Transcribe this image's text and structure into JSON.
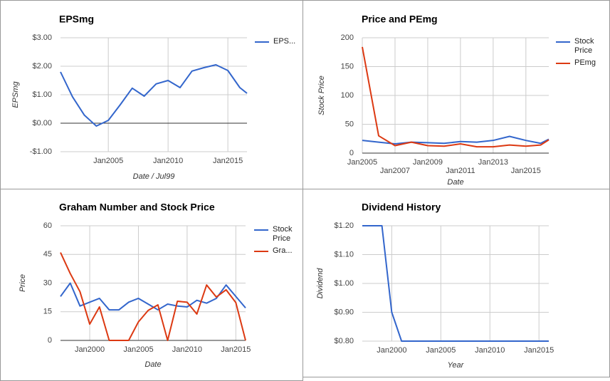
{
  "chart_data": [
    {
      "type": "line",
      "title": "EPSmg",
      "x_label": "Date / Jul99",
      "y_label": "EPSmg",
      "x": [
        2001,
        2002,
        2003,
        2004,
        2005,
        2006,
        2007,
        2008,
        2009,
        2010,
        2011,
        2012,
        2013,
        2014,
        2015,
        2016,
        2016.6
      ],
      "series": [
        {
          "name": "EPS...",
          "color": "#3366cc",
          "values": [
            1.8,
            0.93,
            0.28,
            -0.1,
            0.1,
            0.65,
            1.23,
            0.95,
            1.38,
            1.5,
            1.25,
            1.83,
            1.95,
            2.05,
            1.85,
            1.25,
            1.05
          ]
        }
      ],
      "xlim": [
        2001,
        2016.6
      ],
      "ylim": [
        -1,
        3
      ],
      "xticks": [
        {
          "value": 2005,
          "label": "Jan2005"
        },
        {
          "value": 2010,
          "label": "Jan2010"
        },
        {
          "value": 2015,
          "label": "Jan2015"
        }
      ],
      "yticks": [
        {
          "value": -1,
          "label": "-$1.00"
        },
        {
          "value": 0,
          "label": "$0.00"
        },
        {
          "value": 1,
          "label": "$1.00"
        },
        {
          "value": 2,
          "label": "$2.00"
        },
        {
          "value": 3,
          "label": "$3.00"
        }
      ],
      "grid": true,
      "legend": "right"
    },
    {
      "type": "line",
      "title": "Price and PEmg",
      "x_label": "Date",
      "y_label": "Stock Price",
      "x": [
        2005,
        2006,
        2007,
        2008,
        2009,
        2010,
        2011,
        2012,
        2013,
        2014,
        2015,
        2015.9,
        2016.4
      ],
      "series": [
        {
          "name": "Stock Price",
          "color": "#3366cc",
          "values": [
            22,
            19,
            16,
            19,
            18,
            17,
            20,
            19,
            22,
            29,
            22,
            17,
            24
          ]
        },
        {
          "name": "PEmg",
          "color": "#dc3912",
          "values": [
            184,
            30,
            13,
            19,
            13,
            12,
            16,
            11,
            11,
            14,
            12,
            14,
            23
          ]
        }
      ],
      "xlim": [
        2005,
        2016.4
      ],
      "ylim": [
        0,
        200
      ],
      "xticks": [
        {
          "value": 2005,
          "label": "Jan2005"
        },
        {
          "value": 2007,
          "label": "Jan2007"
        },
        {
          "value": 2009,
          "label": "Jan2009"
        },
        {
          "value": 2011,
          "label": "Jan2011"
        },
        {
          "value": 2013,
          "label": "Jan2013"
        },
        {
          "value": 2015,
          "label": "Jan2015"
        }
      ],
      "yticks": [
        0,
        50,
        100,
        150,
        200
      ],
      "grid": true,
      "legend": "right"
    },
    {
      "type": "line",
      "title": "Graham Number and Stock Price",
      "x_label": "Date",
      "y_label": "Price",
      "x": [
        1997,
        1998,
        1999,
        2000,
        2001,
        2002,
        2003,
        2004,
        2005,
        2006,
        2007,
        2008,
        2009,
        2010,
        2011,
        2012,
        2013,
        2014,
        2015,
        2016
      ],
      "series": [
        {
          "name": "Stock Price",
          "color": "#3366cc",
          "values": [
            23,
            30,
            18,
            20,
            22,
            16,
            16,
            20,
            22,
            19,
            16,
            19,
            18,
            17.5,
            21,
            19.5,
            22,
            29,
            23,
            17
          ]
        },
        {
          "name": "Gra...",
          "color": "#dc3912",
          "values": [
            46,
            35,
            25.5,
            8.5,
            17.5,
            0,
            0,
            0,
            9.7,
            15.7,
            18.6,
            0,
            20.5,
            20,
            13.8,
            29,
            22.7,
            26.5,
            19.8,
            0
          ]
        }
      ],
      "xlim": [
        1997,
        2016
      ],
      "ylim": [
        0,
        60
      ],
      "xticks": [
        {
          "value": 2000,
          "label": "Jan2000"
        },
        {
          "value": 2005,
          "label": "Jan2005"
        },
        {
          "value": 2010,
          "label": "Jan2010"
        },
        {
          "value": 2015,
          "label": "Jan2015"
        }
      ],
      "yticks": [
        0,
        15,
        30,
        45,
        60
      ],
      "grid": true,
      "legend": "right"
    },
    {
      "type": "line",
      "title": "Dividend History",
      "x_label": "Year",
      "y_label": "Dividend",
      "x": [
        1997,
        1998,
        1999,
        2000,
        2001,
        2002,
        2003,
        2004,
        2005,
        2006,
        2007,
        2008,
        2009,
        2010,
        2011,
        2012,
        2013,
        2014,
        2015,
        2016
      ],
      "series": [
        {
          "color": "#3366cc",
          "values": [
            1.2,
            1.2,
            1.2,
            0.9,
            0.8,
            0.8,
            0.8,
            0.8,
            0.8,
            0.8,
            0.8,
            0.8,
            0.8,
            0.8,
            0.8,
            0.8,
            0.8,
            0.8,
            0.8,
            0.8
          ]
        }
      ],
      "xlim": [
        1997,
        2016
      ],
      "ylim": [
        0.8,
        1.2
      ],
      "xticks": [
        {
          "value": 2000,
          "label": "Jan2000"
        },
        {
          "value": 2005,
          "label": "Jan2005"
        },
        {
          "value": 2010,
          "label": "Jan2010"
        },
        {
          "value": 2015,
          "label": "Jan2015"
        }
      ],
      "yticks": [
        {
          "value": 0.8,
          "label": "$0.80"
        },
        {
          "value": 0.9,
          "label": "$0.90"
        },
        {
          "value": 1.0,
          "label": "$1.00"
        },
        {
          "value": 1.1,
          "label": "$1.10"
        },
        {
          "value": 1.2,
          "label": "$1.20"
        }
      ],
      "grid": true
    }
  ]
}
